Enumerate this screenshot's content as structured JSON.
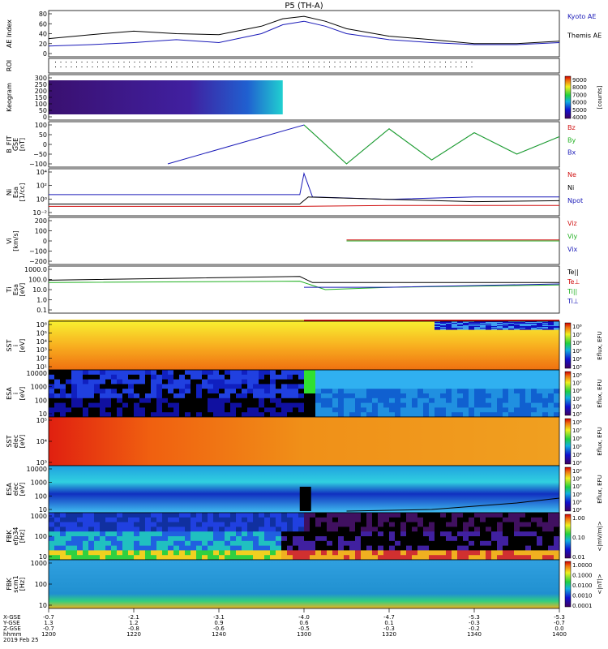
{
  "title": "P5 (TH-A)",
  "panels": [
    {
      "id": "ae",
      "ylabel": "AE Index",
      "ticks": [
        "80",
        "60",
        "40",
        "20",
        "0"
      ],
      "legend": [
        {
          "text": "Kyoto AE",
          "color": "#1a1ab8"
        },
        {
          "text": "Themis AE",
          "color": "#000000"
        }
      ]
    },
    {
      "id": "roi",
      "ylabel": "ROI",
      "ticks": [],
      "legend": []
    },
    {
      "id": "keogram",
      "ylabel": "Keogram",
      "ticks": [
        "300",
        "250",
        "200",
        "150",
        "100",
        "50",
        "0"
      ],
      "legend": []
    },
    {
      "id": "bfit",
      "ylabel": "B_FIT\nGSE\n[nT]",
      "ticks": [
        "100",
        "50",
        "0",
        "−50",
        "−100"
      ],
      "legend": [
        {
          "text": "Bz",
          "color": "#d01010"
        },
        {
          "text": "By",
          "color": "#20b020"
        },
        {
          "text": "Bx",
          "color": "#1a1ab8"
        }
      ]
    },
    {
      "id": "ni",
      "ylabel": "Ni\nEsa\n[1/cc]",
      "ticks": [
        "10⁴",
        "10²",
        "10⁰",
        "10⁻²"
      ],
      "legend": [
        {
          "text": "Ne",
          "color": "#d01010"
        },
        {
          "text": "Ni",
          "color": "#000000"
        },
        {
          "text": "Npot",
          "color": "#1a1ab8"
        }
      ]
    },
    {
      "id": "vi",
      "ylabel": "Vi\n[km/s]",
      "ticks": [
        "200",
        "100",
        "0",
        "−100",
        "−200"
      ],
      "legend": [
        {
          "text": "Viz",
          "color": "#d01010"
        },
        {
          "text": "Viy",
          "color": "#20b020"
        },
        {
          "text": "Vix",
          "color": "#1a1ab8"
        }
      ]
    },
    {
      "id": "ti",
      "ylabel": "Ti\nEsa\n[eV]",
      "ticks": [
        "1000.0",
        "100.0",
        "10.0",
        "1.0",
        "0.1"
      ],
      "legend": [
        {
          "text": "Te||",
          "color": "#000000"
        },
        {
          "text": "Te⊥",
          "color": "#d01010"
        },
        {
          "text": "Ti||",
          "color": "#20b020"
        },
        {
          "text": "Ti⊥",
          "color": "#1a1ab8"
        }
      ]
    },
    {
      "id": "sst_i",
      "ylabel": "SST\ni\n[eV]",
      "ticks": [
        "10⁶",
        "10⁵",
        "10⁴",
        "10³",
        "10²",
        "10¹"
      ],
      "legend": []
    },
    {
      "id": "esa_i",
      "ylabel": "ESA\ni\n[eV]",
      "ticks": [
        "10000",
        "1000",
        "100",
        "10"
      ],
      "legend": []
    },
    {
      "id": "sst_e",
      "ylabel": "SST\nelec\n[eV]",
      "ticks": [
        "10⁵",
        "10⁴",
        "10³"
      ],
      "legend": []
    },
    {
      "id": "esa_e",
      "ylabel": "ESA\nelec\n[eV]",
      "ticks": [
        "10000",
        "1000",
        "100",
        "10"
      ],
      "legend": []
    },
    {
      "id": "fbk_e",
      "ylabel": "FBK\nefp34\n[Hz]",
      "ticks": [
        "1000",
        "100",
        "10"
      ],
      "legend": []
    },
    {
      "id": "fbk_b",
      "ylabel": "FBK\nscm1\n[Hz]",
      "ticks": [
        "1000",
        "100",
        "10"
      ],
      "legend": []
    }
  ],
  "colorbars": [
    {
      "panel": "keogram",
      "label": "[counts]",
      "ticks": [
        "9000",
        "8000",
        "7000",
        "6000",
        "5000",
        "4000"
      ]
    },
    {
      "panel": "sst_i",
      "label": "Eflux, EFU",
      "ticks": [
        "10⁸",
        "10⁷",
        "10⁶",
        "10⁵",
        "10⁴",
        "10³"
      ]
    },
    {
      "panel": "esa_i",
      "label": "Eflux, EFU",
      "ticks": [
        "10⁸",
        "10⁷",
        "10⁶",
        "10⁵",
        "10⁴",
        "10³"
      ]
    },
    {
      "panel": "sst_e",
      "label": "Eflux, EFU",
      "ticks": [
        "10⁸",
        "10⁷",
        "10⁶",
        "10⁵",
        "10⁴",
        "10³"
      ]
    },
    {
      "panel": "esa_e",
      "label": "Eflux, EFU",
      "ticks": [
        "10⁹",
        "10⁸",
        "10⁷",
        "10⁶",
        "10⁵",
        "10⁴"
      ]
    },
    {
      "panel": "fbk_e",
      "label": "<|mV/m|>",
      "ticks": [
        "1.00",
        "0.10",
        "0.01"
      ]
    },
    {
      "panel": "fbk_b",
      "label": "<|nT|>",
      "ticks": [
        "1.0000",
        "0.1000",
        "0.0100",
        "0.0010",
        "0.0001"
      ]
    }
  ],
  "footer": {
    "row_labels": [
      "X-GSE",
      "Y-GSE",
      "Z-GSE",
      "hhmm",
      "2019 Feb 25"
    ],
    "columns": [
      {
        "x": "-0.7",
        "y": "1.3",
        "z": "-0.7",
        "t": "1200"
      },
      {
        "x": "-2.1",
        "y": "1.2",
        "z": "-0.8",
        "t": "1220"
      },
      {
        "x": "-3.1",
        "y": "0.9",
        "z": "-0.6",
        "t": "1240"
      },
      {
        "x": "-4.0",
        "y": "0.6",
        "z": "-0.5",
        "t": "1300"
      },
      {
        "x": "-4.7",
        "y": "0.1",
        "z": "-0.3",
        "t": "1320"
      },
      {
        "x": "-5.3",
        "y": "-0.3",
        "z": "-0.2",
        "t": "1340"
      },
      {
        "x": "-5.3",
        "y": "-0.7",
        "z": "0.0",
        "t": "1400"
      }
    ]
  },
  "chart_data": {
    "type": "line",
    "title": "P5 (TH-A)",
    "x_label": "hhmm",
    "x_ticks": [
      "1200",
      "1220",
      "1240",
      "1300",
      "1320",
      "1340",
      "1400"
    ],
    "x_range": [
      "1200",
      "1400"
    ],
    "series": [
      {
        "name": "Kyoto AE",
        "panel": "ae",
        "x": [
          "1200",
          "1210",
          "1220",
          "1230",
          "1240",
          "1250",
          "1255",
          "1300",
          "1305",
          "1310",
          "1320",
          "1330",
          "1340",
          "1350",
          "1400"
        ],
        "values": [
          15,
          18,
          22,
          28,
          22,
          40,
          58,
          65,
          55,
          40,
          28,
          22,
          18,
          18,
          22
        ]
      },
      {
        "name": "Themis AE",
        "panel": "ae",
        "x": [
          "1200",
          "1210",
          "1220",
          "1230",
          "1240",
          "1250",
          "1255",
          "1300",
          "1305",
          "1310",
          "1320",
          "1330",
          "1340",
          "1350",
          "1400"
        ],
        "values": [
          30,
          38,
          45,
          40,
          38,
          55,
          70,
          75,
          65,
          50,
          35,
          28,
          20,
          20,
          25
        ]
      },
      {
        "name": "Bx",
        "panel": "bfit",
        "x": [
          "1228",
          "1300",
          "1310",
          "1320",
          "1330",
          "1340",
          "1350",
          "1400"
        ],
        "values": [
          -100,
          100,
          -100,
          80,
          -80,
          60,
          -50,
          40
        ]
      },
      {
        "name": "By",
        "panel": "bfit",
        "x": [
          "1300",
          "1310",
          "1320",
          "1330",
          "1340",
          "1350",
          "1400"
        ],
        "values": [
          100,
          -100,
          80,
          -80,
          60,
          -50,
          40
        ]
      }
    ]
  }
}
